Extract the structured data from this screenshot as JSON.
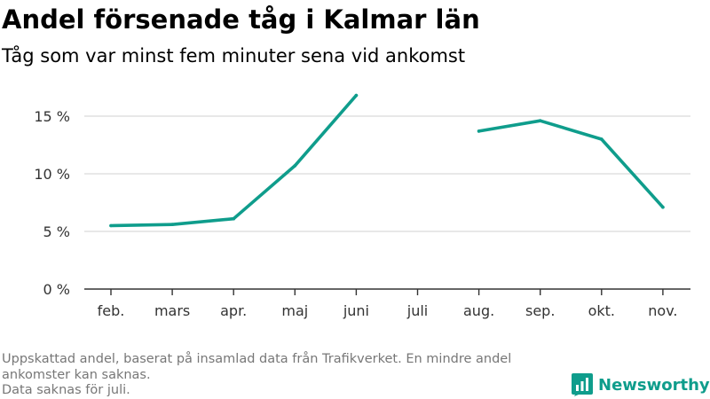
{
  "title": "Andel försenade tåg i Kalmar län",
  "subtitle": "Tåg som var minst fem minuter sena vid ankomst",
  "footnote": {
    "line1": "Uppskattad andel, baserat på insamlad data från Trafikverket. En mindre andel ankomster kan saknas.",
    "line2": "Data saknas för juli."
  },
  "brand": {
    "name": "Newsworthy",
    "icon": "newsworthy-logo-icon"
  },
  "colors": {
    "line": "#0f9d8c",
    "grid": "#d9d9d9",
    "axis": "#333333",
    "brand": "#0f9d8c",
    "footnote": "#777777"
  },
  "chart_data": {
    "type": "line",
    "categories": [
      "feb.",
      "mars",
      "apr.",
      "maj",
      "juni",
      "juli",
      "aug.",
      "sep.",
      "okt.",
      "nov."
    ],
    "series": [
      {
        "values": [
          5.5,
          5.6,
          6.1,
          10.7,
          16.8,
          null,
          13.7,
          14.6,
          13.0,
          7.1
        ]
      }
    ],
    "y_ticks": [
      0,
      5,
      10,
      15
    ],
    "y_tick_labels": [
      "0 %",
      "5 %",
      "10 %",
      "15 %"
    ],
    "ylim": [
      0,
      18
    ],
    "grid": true,
    "legend": "none",
    "xlabel": "",
    "ylabel": ""
  }
}
